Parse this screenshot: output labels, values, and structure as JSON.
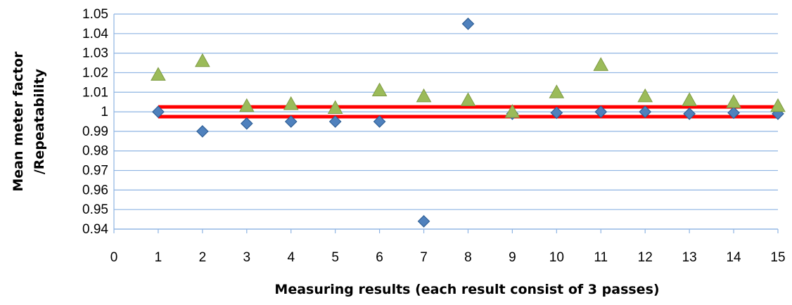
{
  "chart_data": {
    "type": "scatter",
    "title": "",
    "xlabel": "Measuring results (each result consist of 3 passes)",
    "ylabel_lines": [
      "Mean meter factor",
      "/Repeatability"
    ],
    "xlim": [
      0,
      15
    ],
    "ylim": [
      0.94,
      1.05
    ],
    "x_ticks": [
      0,
      1,
      2,
      3,
      4,
      5,
      6,
      7,
      8,
      9,
      10,
      11,
      12,
      13,
      14,
      15
    ],
    "y_ticks": [
      "0.94",
      "0.95",
      "0.96",
      "0.97",
      "0.98",
      "0.99",
      "1",
      "1.01",
      "1.02",
      "1.03",
      "1.04",
      "1.05"
    ],
    "grid": "horizontal",
    "legend": "none",
    "series": [
      {
        "marker": "diamond",
        "color": "#4f81bd",
        "x": [
          1,
          2,
          3,
          4,
          5,
          6,
          7,
          8,
          9,
          10,
          11,
          12,
          13,
          14,
          15
        ],
        "y": [
          1.0,
          0.99,
          0.994,
          0.995,
          0.995,
          0.995,
          0.944,
          1.045,
          0.999,
          0.9995,
          1.0,
          1.0,
          0.999,
          0.9995,
          0.999
        ]
      },
      {
        "marker": "triangle",
        "color": "#9bbb59",
        "x": [
          1,
          2,
          3,
          4,
          5,
          6,
          7,
          8,
          9,
          10,
          11,
          12,
          13,
          14,
          15
        ],
        "y": [
          1.019,
          1.026,
          1.003,
          1.004,
          1.002,
          1.011,
          1.008,
          1.006,
          1.0,
          1.01,
          1.024,
          1.008,
          1.006,
          1.005,
          1.003
        ]
      }
    ],
    "reference_lines": [
      {
        "y": 1.0025,
        "color": "#ff0000"
      },
      {
        "y": 0.9975,
        "color": "#ff0000"
      }
    ]
  }
}
